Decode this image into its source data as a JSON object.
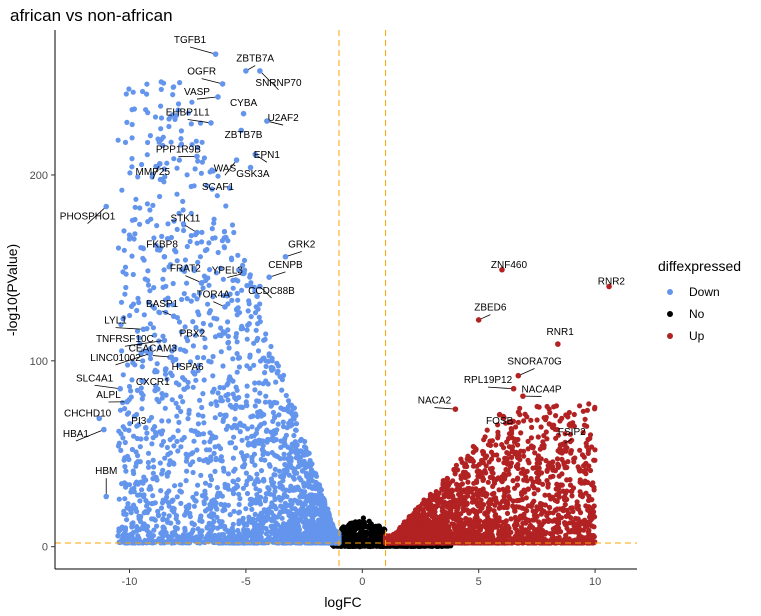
{
  "chart_data": {
    "type": "scatter",
    "title": "african vs non-african",
    "xlabel": "logFC",
    "ylabel": "-log10(PValue)",
    "xlim": [
      -13.2,
      11.8
    ],
    "ylim": [
      -12,
      278
    ],
    "x_ticks": [
      -10,
      -5,
      0,
      5,
      10
    ],
    "y_ticks": [
      0,
      100,
      200
    ],
    "x_tick_labels": [
      "-10",
      "-5",
      "0",
      "5",
      "10"
    ],
    "y_tick_labels": [
      "0",
      "100",
      "200"
    ],
    "grid": false,
    "threshold_lines": {
      "logfc": [
        -1,
        1
      ],
      "pvalue": 2,
      "color": "#ffa500"
    },
    "legend": {
      "title": "diffexpressed",
      "position": "right",
      "entries": [
        {
          "label": "Down",
          "color": "#6495ed"
        },
        {
          "label": "No",
          "color": "#000000"
        },
        {
          "label": "Up",
          "color": "#b22222"
        }
      ]
    },
    "labeled_points": [
      {
        "gene": "TGFB1",
        "x": -6.3,
        "y": 265,
        "group": "Down",
        "lx": -7.4,
        "ly": 271
      },
      {
        "gene": "ZBTB7A",
        "x": -5.0,
        "y": 256,
        "group": "Down",
        "lx": -4.6,
        "ly": 261
      },
      {
        "gene": "OGFR",
        "x": -6.0,
        "y": 249,
        "group": "Down",
        "lx": -6.9,
        "ly": 254
      },
      {
        "gene": "SNRNP70",
        "x": -4.4,
        "y": 256,
        "group": "Down",
        "lx": -3.6,
        "ly": 248
      },
      {
        "gene": "VASP",
        "x": -6.2,
        "y": 242,
        "group": "Down",
        "lx": -7.1,
        "ly": 243
      },
      {
        "gene": "CYBA",
        "x": -5.1,
        "y": 233,
        "group": "Down",
        "lx": -5.1,
        "ly": 237
      },
      {
        "gene": "EHBP1L1",
        "x": -6.5,
        "y": 228,
        "group": "Down",
        "lx": -7.5,
        "ly": 232
      },
      {
        "gene": "U2AF2",
        "x": -4.1,
        "y": 229,
        "group": "Down",
        "lx": -3.4,
        "ly": 229
      },
      {
        "gene": "ZBTB7B",
        "x": -5.2,
        "y": 224,
        "group": "Down",
        "lx": -5.1,
        "ly": 220
      },
      {
        "gene": "PPP1R9B",
        "x": -7.1,
        "y": 210,
        "group": "Down",
        "lx": -7.9,
        "ly": 212
      },
      {
        "gene": "EPN1",
        "x": -4.6,
        "y": 211,
        "group": "Down",
        "lx": -4.1,
        "ly": 209
      },
      {
        "gene": "WAS",
        "x": -5.4,
        "y": 208,
        "group": "Down",
        "lx": -5.9,
        "ly": 202
      },
      {
        "gene": "MMP25",
        "x": -8.7,
        "y": 206,
        "group": "Down",
        "lx": -9.0,
        "ly": 200
      },
      {
        "gene": "GSK3A",
        "x": -4.8,
        "y": 204,
        "group": "Down",
        "lx": -4.7,
        "ly": 199
      },
      {
        "gene": "SCAF1",
        "x": -5.7,
        "y": 193,
        "group": "Down",
        "lx": -6.2,
        "ly": 192
      },
      {
        "gene": "PHOSPHO1",
        "x": -11.0,
        "y": 183,
        "group": "Down",
        "lx": -11.8,
        "ly": 176
      },
      {
        "gene": "STK11",
        "x": -7.1,
        "y": 169,
        "group": "Down",
        "lx": -7.6,
        "ly": 175
      },
      {
        "gene": "FKBP8",
        "x": -8.5,
        "y": 156,
        "group": "Down",
        "lx": -8.6,
        "ly": 161
      },
      {
        "gene": "GRK2",
        "x": -3.3,
        "y": 156,
        "group": "Down",
        "lx": -2.6,
        "ly": 161
      },
      {
        "gene": "YPEL3",
        "x": -5.1,
        "y": 147,
        "group": "Down",
        "lx": -5.8,
        "ly": 147
      },
      {
        "gene": "FRAT2",
        "x": -6.9,
        "y": 142,
        "group": "Down",
        "lx": -7.6,
        "ly": 148
      },
      {
        "gene": "CENPB",
        "x": -4.0,
        "y": 145,
        "group": "Down",
        "lx": -3.3,
        "ly": 150
      },
      {
        "gene": "CCDC88B",
        "x": -4.4,
        "y": 140,
        "group": "Down",
        "lx": -3.9,
        "ly": 136
      },
      {
        "gene": "TOR4A",
        "x": -5.9,
        "y": 129,
        "group": "Down",
        "lx": -6.4,
        "ly": 134
      },
      {
        "gene": "BASP1",
        "x": -8.1,
        "y": 124,
        "group": "Down",
        "lx": -8.6,
        "ly": 129
      },
      {
        "gene": "LYL1",
        "x": -9.4,
        "y": 117,
        "group": "Down",
        "lx": -10.6,
        "ly": 120
      },
      {
        "gene": "TNFRSF10C",
        "x": -8.5,
        "y": 111,
        "group": "Down",
        "lx": -10.2,
        "ly": 110
      },
      {
        "gene": "PBX2",
        "x": -6.9,
        "y": 116,
        "group": "Down",
        "lx": -7.3,
        "ly": 113
      },
      {
        "gene": "CEACAM3",
        "x": -8.2,
        "y": 102,
        "group": "Down",
        "lx": -9.0,
        "ly": 105
      },
      {
        "gene": "LINC01002",
        "x": -9.1,
        "y": 104,
        "group": "Down",
        "lx": -10.6,
        "ly": 100
      },
      {
        "gene": "HSPA6",
        "x": -7.2,
        "y": 93,
        "group": "Down",
        "lx": -7.5,
        "ly": 95
      },
      {
        "gene": "SLC4A1",
        "x": -10.4,
        "y": 85,
        "group": "Down",
        "lx": -11.5,
        "ly": 89
      },
      {
        "gene": "CXCR1",
        "x": -8.9,
        "y": 84,
        "group": "Down",
        "lx": -9.0,
        "ly": 87
      },
      {
        "gene": "ALPL",
        "x": -10.1,
        "y": 78,
        "group": "Down",
        "lx": -10.9,
        "ly": 80
      },
      {
        "gene": "CHCHD10",
        "x": -11.3,
        "y": 69,
        "group": "Down",
        "lx": -11.8,
        "ly": 70
      },
      {
        "gene": "PI3",
        "x": -9.3,
        "y": 64,
        "group": "Down",
        "lx": -9.6,
        "ly": 66
      },
      {
        "gene": "HBA1",
        "x": -11.1,
        "y": 63,
        "group": "Down",
        "lx": -12.3,
        "ly": 59
      },
      {
        "gene": "HBM",
        "x": -11.0,
        "y": 27,
        "group": "Down",
        "lx": -11.0,
        "ly": 39
      },
      {
        "gene": "ZNF460",
        "x": 6.0,
        "y": 149,
        "group": "Up",
        "lx": 6.3,
        "ly": 150
      },
      {
        "gene": "RNR2",
        "x": 10.6,
        "y": 140,
        "group": "Up",
        "lx": 10.7,
        "ly": 141
      },
      {
        "gene": "ZBED6",
        "x": 5.0,
        "y": 122,
        "group": "Up",
        "lx": 5.5,
        "ly": 127
      },
      {
        "gene": "RNR1",
        "x": 8.4,
        "y": 109,
        "group": "Up",
        "lx": 8.5,
        "ly": 114
      },
      {
        "gene": "SNORA70G",
        "x": 6.7,
        "y": 92,
        "group": "Up",
        "lx": 7.4,
        "ly": 98
      },
      {
        "gene": "RPL19P12",
        "x": 6.5,
        "y": 85,
        "group": "Up",
        "lx": 5.4,
        "ly": 88
      },
      {
        "gene": "NACA4P",
        "x": 6.9,
        "y": 81,
        "group": "Up",
        "lx": 7.7,
        "ly": 83
      },
      {
        "gene": "NACA2",
        "x": 4.0,
        "y": 74,
        "group": "Up",
        "lx": 3.1,
        "ly": 77
      },
      {
        "gene": "FOSB",
        "x": 5.9,
        "y": 71,
        "group": "Up",
        "lx": 5.9,
        "ly": 66
      },
      {
        "gene": "FSIP2",
        "x": 8.6,
        "y": 55,
        "group": "Up",
        "lx": 9.0,
        "ly": 60
      }
    ]
  }
}
